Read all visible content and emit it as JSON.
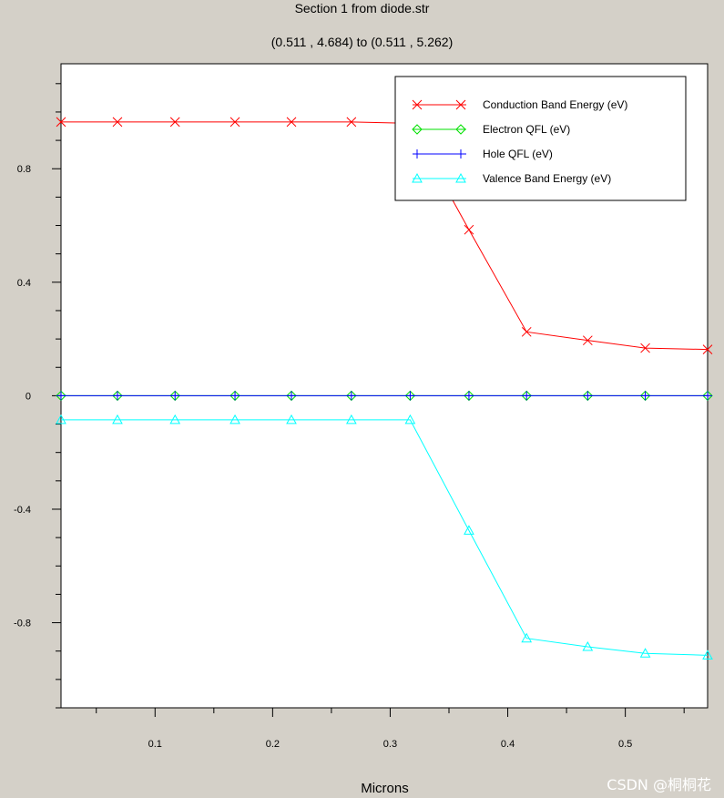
{
  "header": {
    "title": "Section 1 from diode.str",
    "subtitle": "(0.511 , 4.684) to (0.511 , 5.262)"
  },
  "watermark": "CSDN @桐桐花",
  "chart_data": {
    "type": "line",
    "xlabel": "Microns",
    "ylabel": "",
    "xlim": [
      0.02,
      0.57
    ],
    "ylim": [
      -1.1,
      1.17
    ],
    "x_ticks": [
      0.1,
      0.2,
      0.3,
      0.4,
      0.5
    ],
    "y_ticks": [
      -0.8,
      -0.4,
      0,
      0.4,
      0.8
    ],
    "x_tick_labels": [
      "0.1",
      "0.2",
      "0.3",
      "0.4",
      "0.5"
    ],
    "y_tick_labels": [
      "-0.8",
      "-0.4",
      "0",
      "0.4",
      "0.8"
    ],
    "grid": false,
    "legend_position": "top-right",
    "x": [
      0.02,
      0.068,
      0.117,
      0.168,
      0.216,
      0.267,
      0.317,
      0.367,
      0.416,
      0.468,
      0.517,
      0.57
    ],
    "series": [
      {
        "name": "Conduction Band Energy (eV)",
        "color": "#ff0000",
        "marker": "x",
        "values": [
          0.965,
          0.965,
          0.965,
          0.965,
          0.965,
          0.965,
          0.96,
          0.585,
          0.225,
          0.195,
          0.168,
          0.163
        ]
      },
      {
        "name": "Electron QFL (eV)",
        "color": "#00e000",
        "marker": "diamond",
        "values": [
          0,
          0,
          0,
          0,
          0,
          0,
          0,
          0,
          0,
          0,
          0,
          0
        ]
      },
      {
        "name": "Hole QFL (eV)",
        "color": "#0000ff",
        "marker": "plus",
        "values": [
          0,
          0,
          0,
          0,
          0,
          0,
          0,
          0,
          0,
          0,
          0,
          0
        ]
      },
      {
        "name": "Valence Band Energy (eV)",
        "color": "#00ffff",
        "marker": "triangle",
        "values": [
          -0.085,
          -0.085,
          -0.085,
          -0.085,
          -0.085,
          -0.085,
          -0.085,
          -0.475,
          -0.855,
          -0.885,
          -0.908,
          -0.915
        ]
      }
    ]
  }
}
